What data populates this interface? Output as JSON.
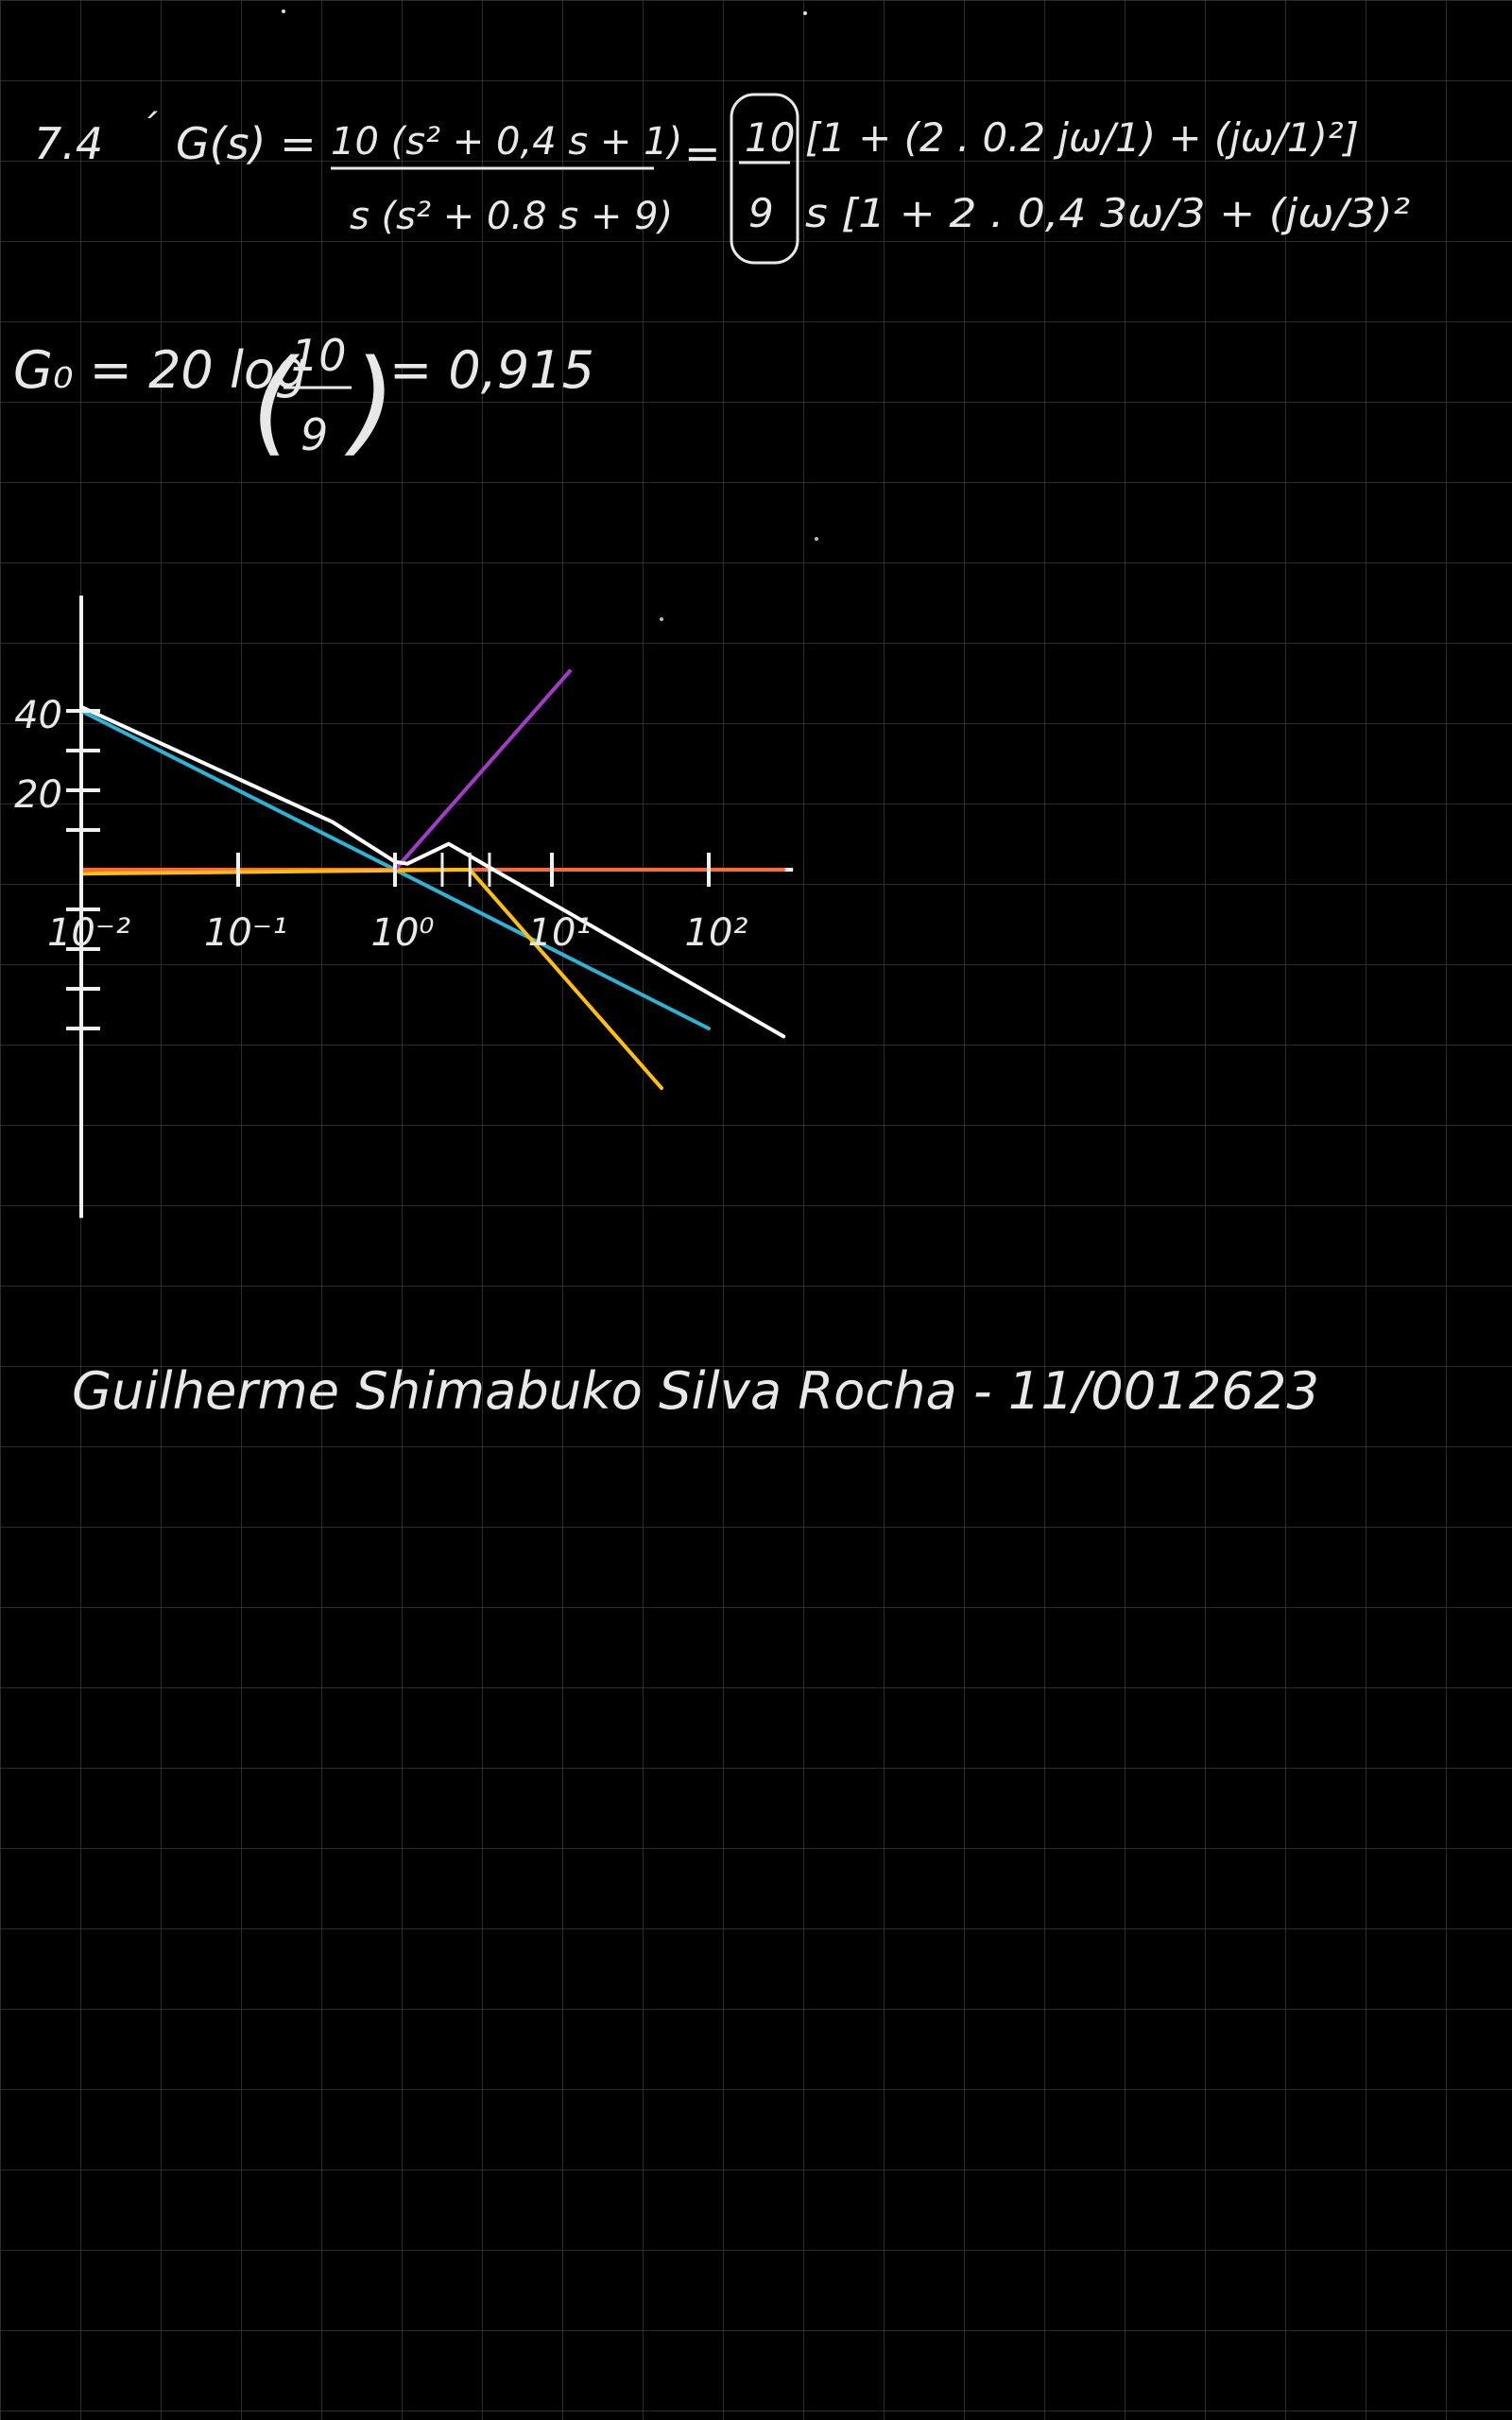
{
  "note": {
    "problem_number": "7.4",
    "tick_mark": "´",
    "lhs": "G(s) =",
    "numerator": "10 (s² + 0,4 s + 1)",
    "denominator": "s (s² + 0.8 s + 9)",
    "equals": "=",
    "gain_num": "10",
    "gain_den": "9",
    "bracket_num": "[1 + (2 . 0.2 jω/1) + (jω/1)²]",
    "bracket_den": "s [1 + 2 . 0,4 3ω/3 + (jω/3)²",
    "gain_lhs": "G₀ = 20 log",
    "gain_frac_num": "10",
    "gain_frac_den": "9",
    "gain_result": "= 0,915",
    "signature": "Guilherme Shimabuko Silva Rocha - 11/0012623"
  },
  "chart_data": {
    "type": "line",
    "title": "",
    "x_scale": "log",
    "x_tick_labels": [
      "10⁻²",
      "10⁻¹",
      "10⁰",
      "10¹",
      "10²"
    ],
    "x_ticks": [
      0.01,
      0.1,
      1,
      10,
      100
    ],
    "xlim": [
      0.01,
      300
    ],
    "y_tick_labels": [
      "40",
      "20"
    ],
    "y_ticks": [
      40,
      20
    ],
    "y_tick_marks": [
      40,
      30,
      20,
      10,
      -10,
      -20,
      -30,
      -40
    ],
    "ylim": [
      -52,
      50
    ],
    "grid": true,
    "series": [
      {
        "color": "#29b6d6",
        "points": [
          [
            0.01,
            40
          ],
          [
            100,
            -40
          ]
        ]
      },
      {
        "color": "#ff6a3d",
        "points": [
          [
            0.01,
            0
          ],
          [
            300,
            0
          ]
        ]
      },
      {
        "color": "#ffc107",
        "points": [
          [
            0.01,
            -1
          ],
          [
            3,
            0
          ],
          [
            50,
            -55
          ]
        ]
      },
      {
        "color": "#a23cc8",
        "points": [
          [
            1,
            0
          ],
          [
            13,
            50
          ]
        ]
      },
      {
        "color": "#ffffff",
        "points": [
          [
            0.01,
            41
          ],
          [
            0.4,
            12
          ],
          [
            1,
            2
          ],
          [
            1.2,
            1.5
          ],
          [
            2.2,
            6.5
          ],
          [
            300,
            -42
          ]
        ]
      }
    ]
  }
}
